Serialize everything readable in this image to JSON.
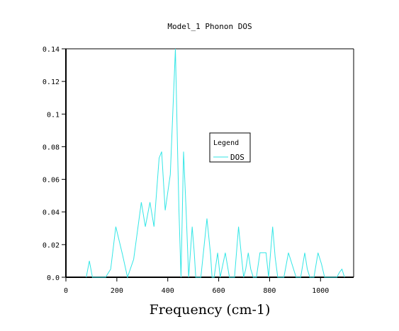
{
  "chart_data": {
    "type": "line",
    "title": "Model_1 Phonon DOS",
    "xlabel": "Frequency (cm-1)",
    "ylabel": "",
    "xlim": [
      0,
      1130
    ],
    "ylim": [
      0,
      0.14
    ],
    "x_ticks": [
      0,
      200,
      400,
      600,
      800,
      1000
    ],
    "x_tick_labels": [
      "0",
      "200",
      "400",
      "600",
      "800",
      "1000"
    ],
    "y_ticks": [
      0,
      0.02,
      0.04,
      0.06,
      0.08,
      0.1,
      0.12,
      0.14
    ],
    "y_tick_labels": [
      "0.0",
      "0.02",
      "0.04",
      "0.06",
      "0.08",
      "0.1",
      "0.12",
      "0.14"
    ],
    "grid": false,
    "legend": {
      "title": "Legend",
      "placement": "center-right"
    },
    "series": [
      {
        "name": "DOS",
        "color": "#33e6e6",
        "x": [
          80,
          92,
          104,
          120,
          156,
          176,
          196,
          222,
          242,
          266,
          296,
          312,
          330,
          346,
          366,
          376,
          390,
          410,
          430,
          438,
          444,
          452,
          462,
          472,
          482,
          496,
          504,
          510,
          530,
          554,
          568,
          574,
          582,
          596,
          606,
          626,
          642,
          652,
          662,
          678,
          690,
          698,
          706,
          716,
          726,
          736,
          748,
          762,
          774,
          786,
          796,
          812,
          822,
          832,
          844,
          856,
          874,
          884,
          904,
          922,
          938,
          948,
          958,
          974,
          990,
          1004,
          1016,
          1034,
          1054,
          1064,
          1074,
          1084,
          1094
        ],
        "values": [
          0,
          0.01,
          0,
          0,
          0,
          0.005,
          0.031,
          0.014,
          0,
          0.011,
          0.046,
          0.031,
          0.046,
          0.031,
          0.073,
          0.077,
          0.041,
          0.063,
          0.14,
          0.081,
          0.041,
          0,
          0.077,
          0.041,
          0,
          0.031,
          0.015,
          0,
          0,
          0.036,
          0.014,
          0,
          0,
          0.015,
          0,
          0.015,
          0,
          0,
          0,
          0.031,
          0.012,
          0,
          0.005,
          0.015,
          0.005,
          0,
          0,
          0.015,
          0.015,
          0.015,
          0,
          0.031,
          0.012,
          0,
          0,
          0,
          0.015,
          0.01,
          0,
          0,
          0.015,
          0.005,
          0,
          0,
          0.015,
          0.008,
          0,
          0,
          0,
          0,
          0.003,
          0.005,
          0
        ]
      }
    ]
  }
}
